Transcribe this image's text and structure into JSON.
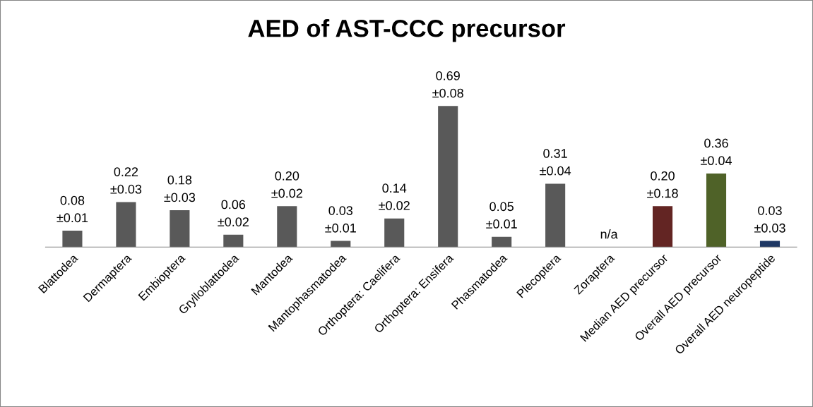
{
  "chart_data": {
    "type": "bar",
    "title": "AED of AST-CCC precursor",
    "categories": [
      "Blattodea",
      "Dermaptera",
      "Embioptera",
      "Grylloblattodea",
      "Mantodea",
      "Mantophasmatodea",
      "Orthoptera: Caelifera",
      "Orthoptera: Ensifera",
      "Phasmatodea",
      "Plecoptera",
      "Zoraptera",
      "Median AED precursor",
      "Overall AED precursor",
      "Overall AED neuropeptide"
    ],
    "values": [
      0.08,
      0.22,
      0.18,
      0.06,
      0.2,
      0.03,
      0.14,
      0.69,
      0.05,
      0.31,
      null,
      0.2,
      0.36,
      0.03
    ],
    "value_labels": [
      "0.08\n±0.01",
      "0.22\n±0.03",
      "0.18\n±0.03",
      "0.06\n±0.02",
      "0.20\n±0.02",
      "0.03\n±0.01",
      "0.14\n±0.02",
      "0.69\n±0.08",
      "0.05\n±0.01",
      "0.31\n±0.04",
      "n/a",
      "0.20\n±0.18",
      "0.36\n±0.04",
      "0.03\n±0.03"
    ],
    "colors": [
      "#595959",
      "#595959",
      "#595959",
      "#595959",
      "#595959",
      "#595959",
      "#595959",
      "#595959",
      "#595959",
      "#595959",
      "#595959",
      "#632523",
      "#4f6228",
      "#1f3864"
    ],
    "grid": false
  }
}
